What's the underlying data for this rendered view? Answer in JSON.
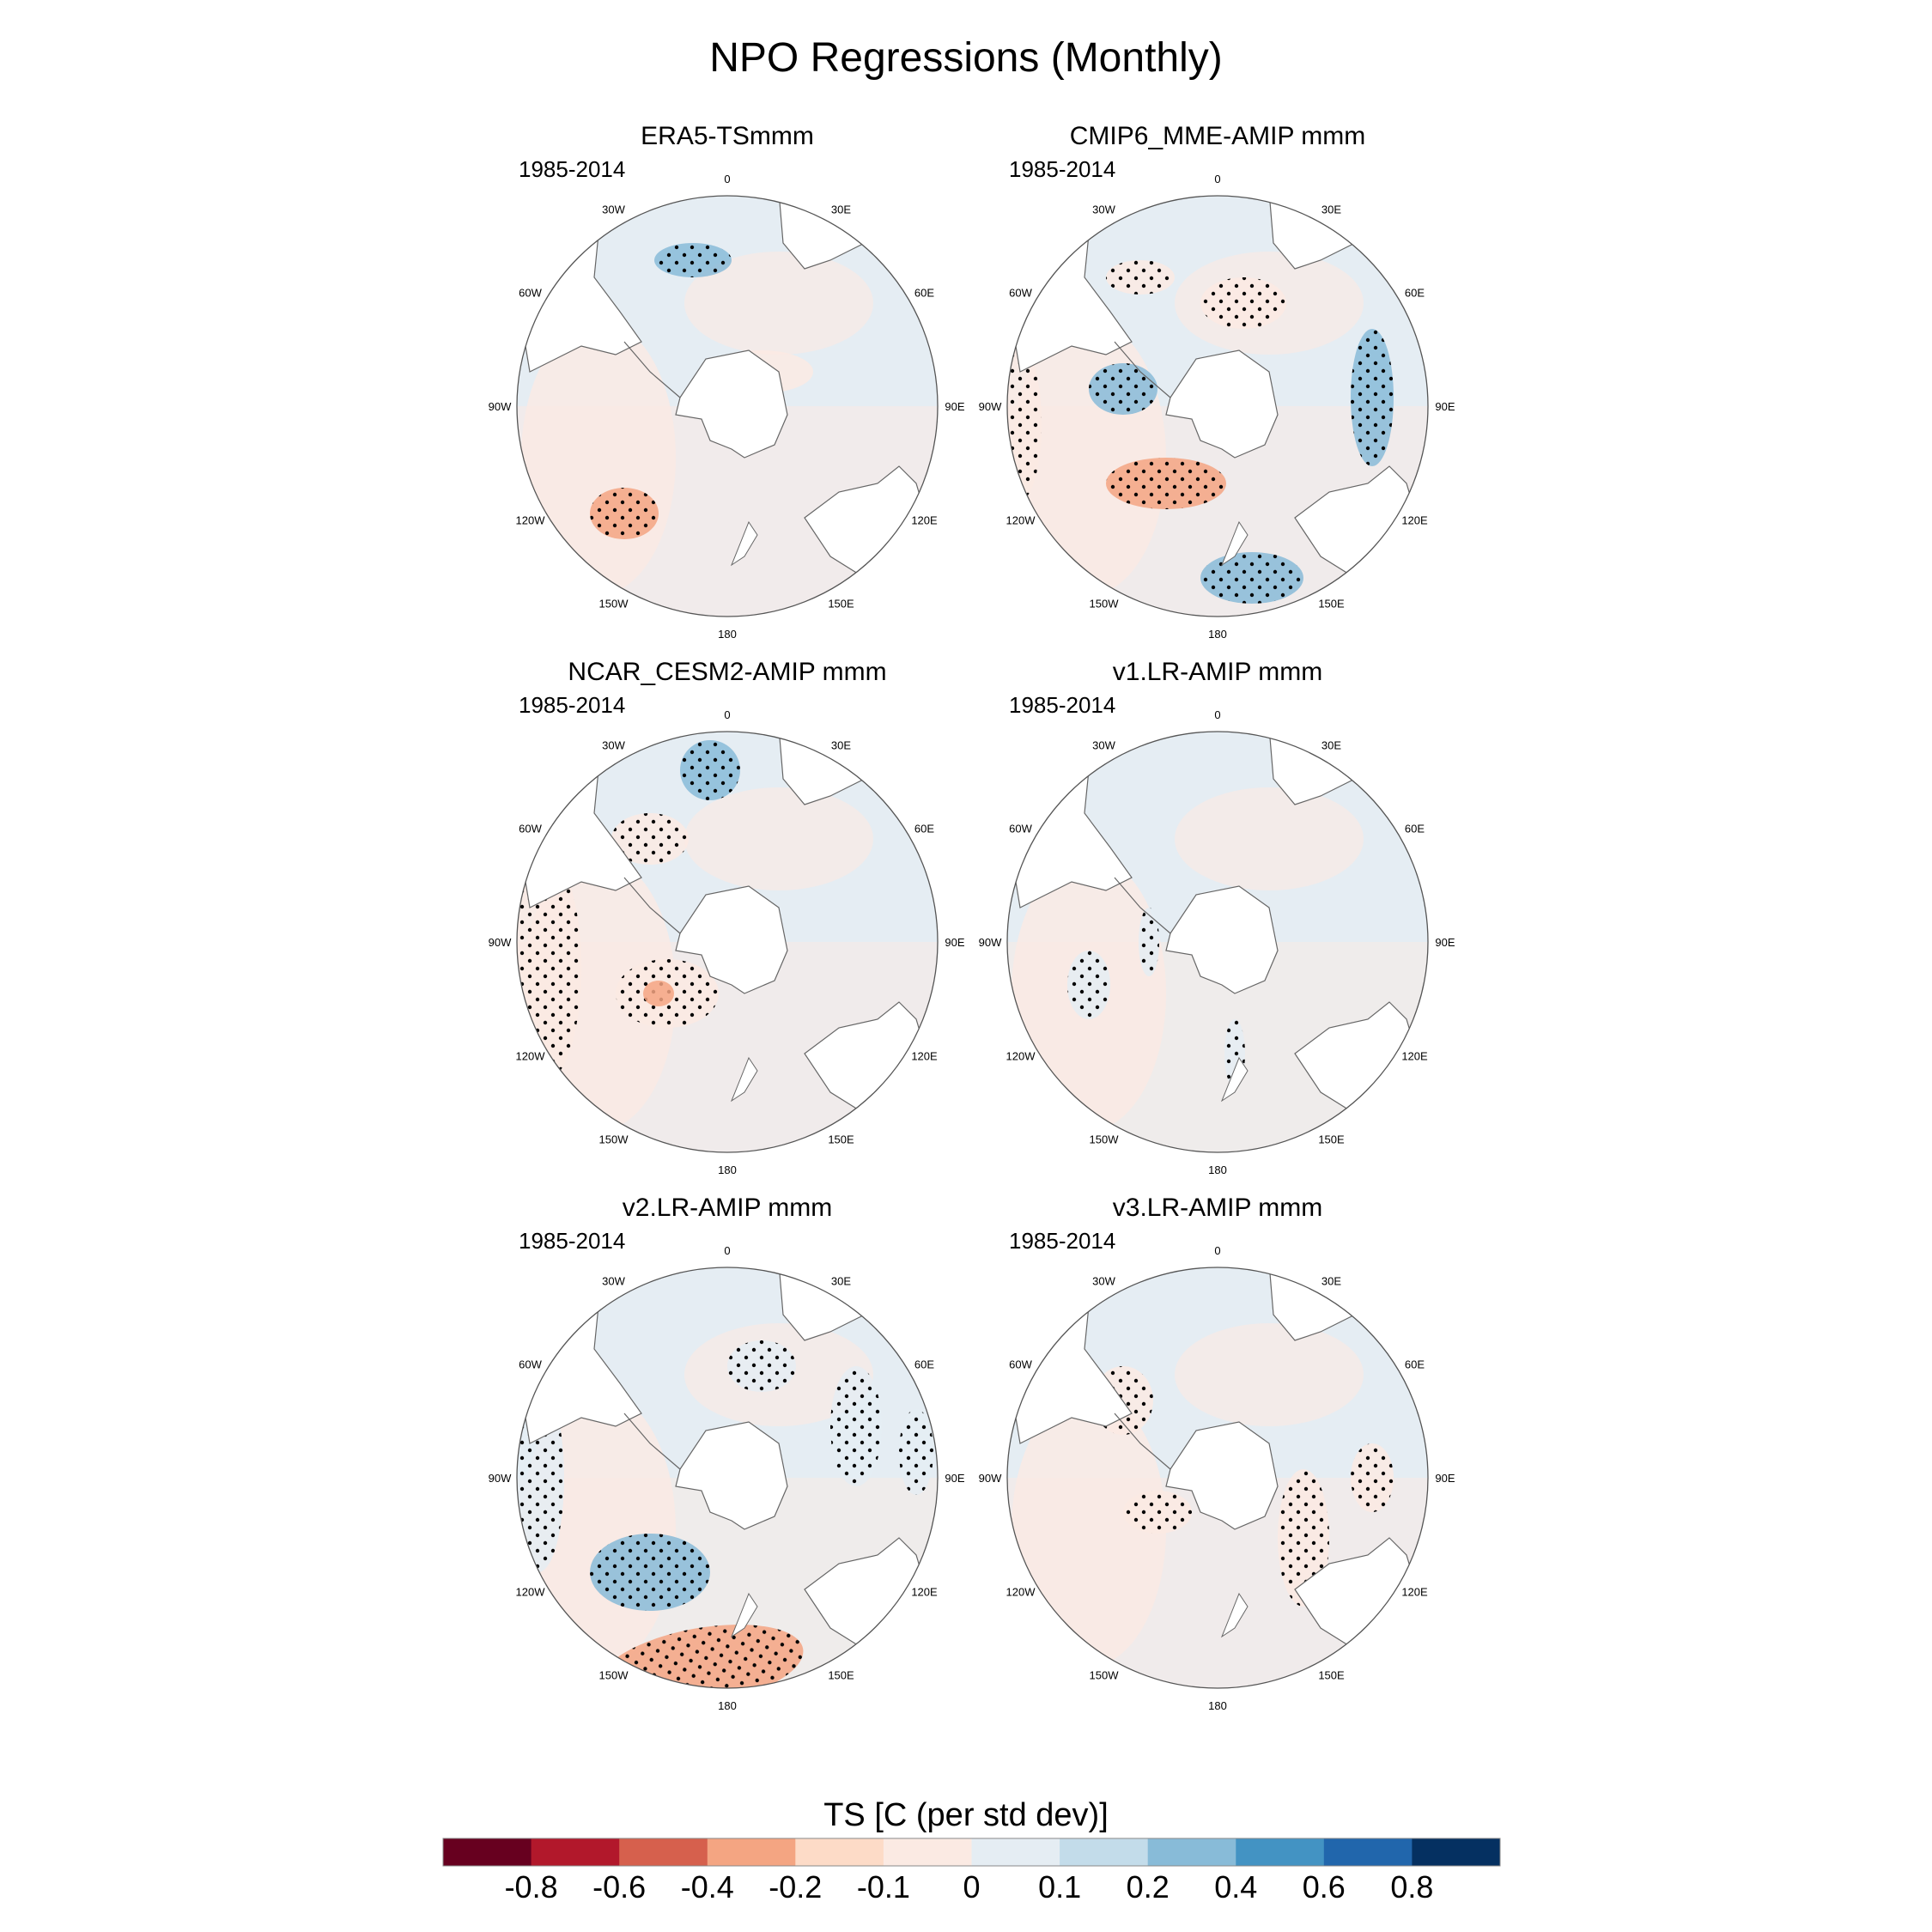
{
  "figure": {
    "title": "NPO Regressions (Monthly)"
  },
  "chart_data": {
    "type": "heatmap",
    "title": "NPO Regressions (Monthly)",
    "variable": "TS",
    "projection": "south-polar-stereographic",
    "longitude_labels": [
      "0",
      "30E",
      "60E",
      "90E",
      "120E",
      "150E",
      "180",
      "150W",
      "120W",
      "90W",
      "60W",
      "30W"
    ],
    "panels": [
      {
        "name": "ERA5-TSmmm",
        "period": "1985-2014"
      },
      {
        "name": "CMIP6_MME-AMIP  mmm",
        "period": "1985-2014"
      },
      {
        "name": "NCAR_CESM2-AMIP  mmm",
        "period": "1985-2014"
      },
      {
        "name": "v1.LR-AMIP  mmm",
        "period": "1985-2014"
      },
      {
        "name": "v2.LR-AMIP  mmm",
        "period": "1985-2014"
      },
      {
        "name": "v3.LR-AMIP  mmm",
        "period": "1985-2014"
      }
    ],
    "colorbar": {
      "label": "TS [C (per std dev)]",
      "levels": [
        "-0.8",
        "-0.6",
        "-0.4",
        "-0.2",
        "-0.1",
        "0",
        "0.1",
        "0.2",
        "0.4",
        "0.6",
        "0.8"
      ],
      "colors": [
        "#67001f",
        "#b2182b",
        "#d6604d",
        "#f4a582",
        "#fddbc7",
        "#fbeae3",
        "#e5edf3",
        "#c3dcea",
        "#88bbd8",
        "#4393c3",
        "#2166ac",
        "#053061"
      ]
    },
    "stipple_note": "dots mark statistically significant regions"
  },
  "colors": {
    "land": "#ffffff",
    "ocean_neutral_warm": "#fbeae3",
    "ocean_neutral_cool": "#e5edf3",
    "warm": "#f4a582",
    "cool": "#88bbd8",
    "outline": "#666666"
  }
}
